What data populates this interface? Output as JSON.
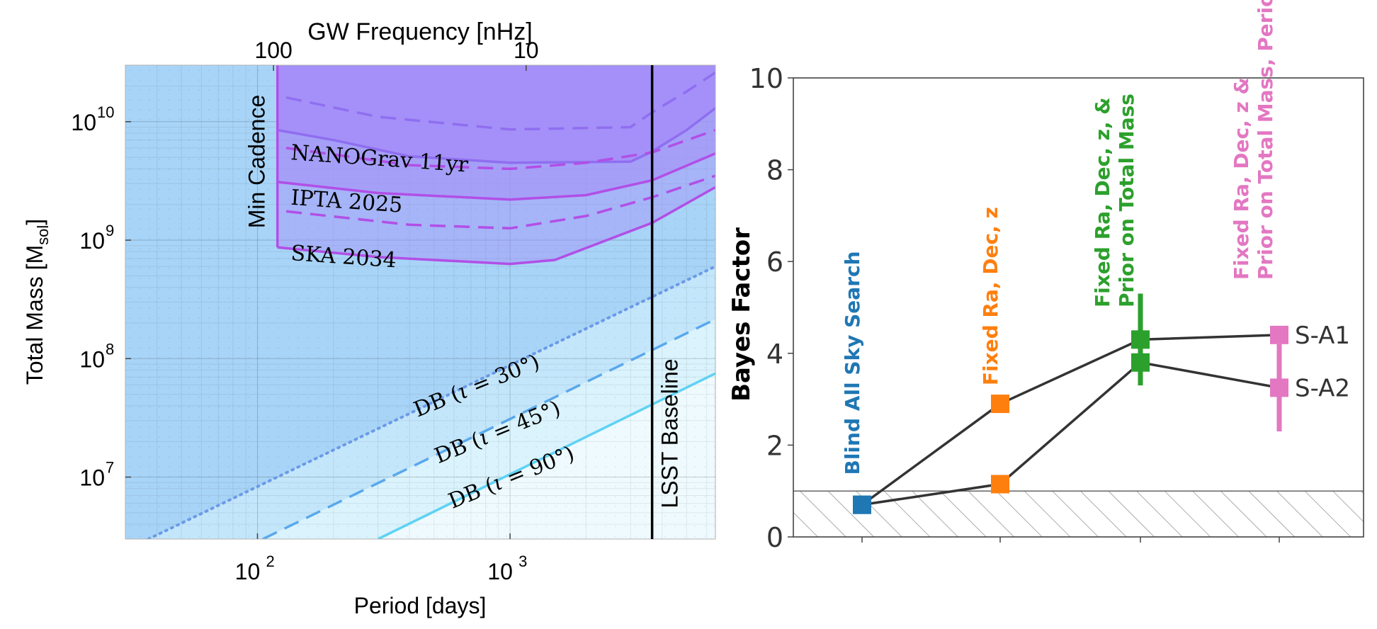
{
  "chart_data": [
    {
      "type": "line",
      "top_axis_label": "GW Frequency [nHz]",
      "top_ticks": [
        {
          "freq_nHz": 100,
          "label": "100"
        },
        {
          "freq_nHz": 10,
          "label": "10"
        }
      ],
      "xlabel": "Period [days]",
      "ylabel": "Total Mass [M",
      "ylabel_sub": "sol",
      "ylabel_close": "]",
      "x_scale": "log",
      "y_scale": "log",
      "xlim": [
        30,
        6500
      ],
      "ylim": [
        3000000,
        30000000000
      ],
      "x_ticks": [
        {
          "value": 100,
          "base": "10",
          "exp": "2"
        },
        {
          "value": 1000,
          "base": "10",
          "exp": "3"
        }
      ],
      "y_ticks": [
        {
          "value": 10000000,
          "base": "10",
          "exp": "7"
        },
        {
          "value": 100000000,
          "base": "10",
          "exp": "8"
        },
        {
          "value": 1000000000,
          "base": "10",
          "exp": "9"
        },
        {
          "value": 10000000000,
          "base": "10",
          "exp": "10"
        }
      ],
      "colors": {
        "bg_sky": "#a8d4f7",
        "db30_band": "#c3e6fb",
        "db45_band": "#daf3fd",
        "db90_band": "#eefafe",
        "pta_fill": "#a48ef8",
        "pta_edge": "#b14fe6",
        "pta_dash": "#8f6ef0",
        "db30_line": "#6b9ae8",
        "db45_line": "#5aa8ec",
        "db90_line": "#5fd2f3"
      },
      "min_cadence": {
        "period_days": 120,
        "label": "Min Cadence"
      },
      "lsst_baseline": {
        "period_days": 3650,
        "label": "LSST Baseline"
      },
      "pta_curves": [
        {
          "name": "NANOGrav 11yr",
          "label": "NANOGrav 11yr",
          "label_at": [
            135,
            4800000000
          ],
          "solid": [
            [
              120,
              8500000000
            ],
            [
              200,
              7000000000
            ],
            [
              400,
              5100000000
            ],
            [
              1000,
              4500000000
            ],
            [
              3000,
              4600000000
            ],
            [
              3650,
              5600000000
            ],
            [
              5000,
              8500000000
            ],
            [
              6500,
              13000000000
            ]
          ],
          "dashed": [
            [
              130,
              16000000000
            ],
            [
              300,
              11000000000
            ],
            [
              1000,
              8600000000
            ],
            [
              3000,
              9000000000
            ],
            [
              3650,
              12000000000
            ],
            [
              5000,
              18000000000
            ],
            [
              6500,
              26000000000
            ]
          ]
        },
        {
          "name": "IPTA 2025",
          "label": "IPTA 2025",
          "label_at": [
            135,
            2000000000
          ],
          "solid": [
            [
              120,
              3100000000
            ],
            [
              300,
              2500000000
            ],
            [
              1000,
              2200000000
            ],
            [
              2000,
              2400000000
            ],
            [
              3650,
              3200000000
            ],
            [
              6500,
              5400000000
            ]
          ],
          "dashed": [
            [
              130,
              6000000000
            ],
            [
              400,
              4300000000
            ],
            [
              1000,
              4000000000
            ],
            [
              2000,
              4500000000
            ],
            [
              3650,
              5500000000
            ],
            [
              6500,
              8500000000
            ]
          ]
        },
        {
          "name": "SKA 2034",
          "label": "SKA 2034",
          "label_at": [
            135,
            680000000
          ],
          "solid": [
            [
              120,
              870000000
            ],
            [
              300,
              720000000
            ],
            [
              1000,
              630000000
            ],
            [
              1500,
              680000000
            ],
            [
              3650,
              1400000000
            ],
            [
              6500,
              2800000000
            ]
          ],
          "dashed": [
            [
              130,
              1750000000
            ],
            [
              400,
              1350000000
            ],
            [
              1000,
              1260000000
            ],
            [
              2000,
              1600000000
            ],
            [
              3650,
              2300000000
            ],
            [
              6500,
              3500000000
            ]
          ]
        }
      ],
      "db_curves": [
        {
          "name": "DB (ι = 30°)",
          "prefix": "DB ",
          "iota": "30",
          "style": "dotted",
          "points": [
            [
              37,
              3000000
            ],
            [
              6500,
              600000000
            ]
          ],
          "label_at": [
            430,
            32000000
          ]
        },
        {
          "name": "DB (ι = 45°)",
          "prefix": "DB ",
          "iota": "45",
          "style": "dashed",
          "points": [
            [
              105,
              3000000
            ],
            [
              6500,
              215000000
            ]
          ],
          "label_at": [
            520,
            13000000
          ]
        },
        {
          "name": "DB (ι = 90°)",
          "prefix": "DB ",
          "iota": "90",
          "style": "solid",
          "points": [
            [
              300,
              3000000
            ],
            [
              6500,
              75000000
            ]
          ],
          "label_at": [
            590,
            5400000
          ]
        }
      ]
    },
    {
      "type": "scatter",
      "ylabel": "Bayes Factor",
      "ylim": [
        0,
        10
      ],
      "y_ticks": [
        0,
        2,
        4,
        6,
        8,
        10
      ],
      "hatch_below": 1,
      "categories": [
        {
          "lines": [
            "Blind All Sky Search"
          ],
          "color": "#1f77b4"
        },
        {
          "lines": [
            "Fixed Ra, Dec, z"
          ],
          "color": "#ff7f0e"
        },
        {
          "lines": [
            "Fixed Ra, Dec, z, &",
            "Prior on Total Mass"
          ],
          "color": "#2ca02c"
        },
        {
          "lines": [
            "Fixed Ra, Dec, z &",
            "Prior on Total Mass, Period"
          ],
          "color": "#e377c2"
        }
      ],
      "series": [
        {
          "name": "S-A1",
          "label": "S-A1",
          "values": [
            0.7,
            2.9,
            4.3,
            4.4
          ],
          "errors": [
            0,
            0,
            1.0,
            0
          ]
        },
        {
          "name": "S-A2",
          "label": "S-A2",
          "values": [
            0.7,
            1.15,
            3.8,
            3.25
          ],
          "errors": [
            0,
            0,
            0,
            0.95
          ]
        }
      ]
    }
  ]
}
